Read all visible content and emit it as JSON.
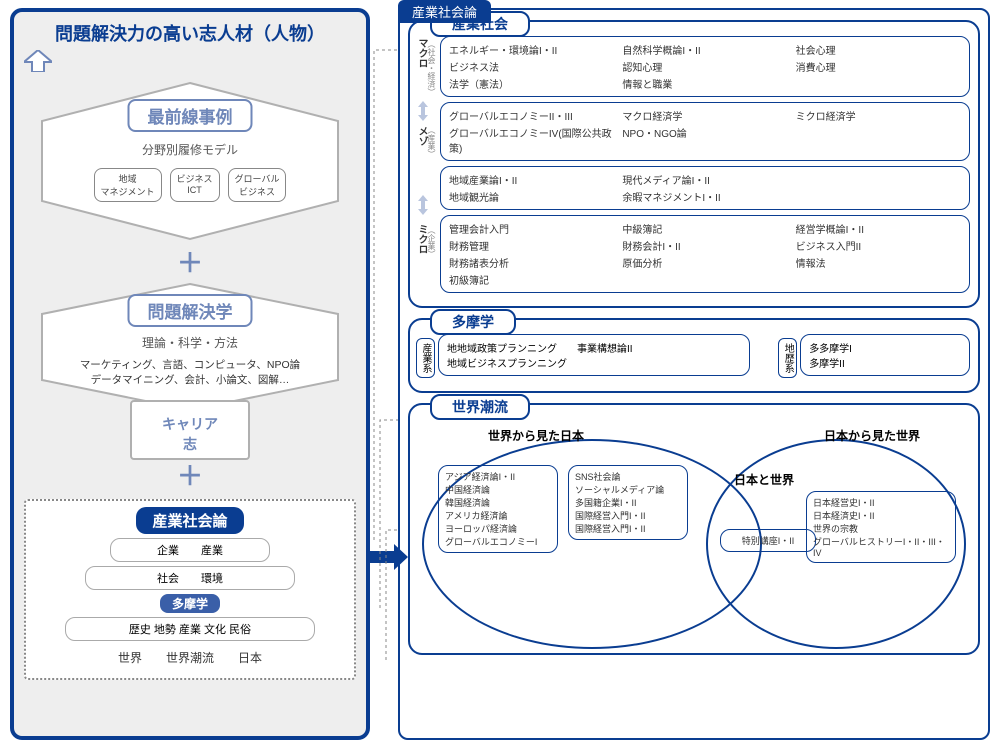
{
  "colors": {
    "primary": "#0a3d91",
    "secondary": "#6f87b9",
    "bg_gray": "#eeeeee",
    "border_gray": "#b0b0b0",
    "text": "#333333"
  },
  "left": {
    "title": "問題解決力の高い志人材（人物）",
    "hex1": {
      "label": "最前線事例",
      "subtitle": "分野別履修モデル",
      "pills": [
        "地域\nマネジメント",
        "ビジネス\nICT",
        "グローバル\nビジネス"
      ]
    },
    "hex2": {
      "label": "問題解決学",
      "subtitle": "理論・科学・方法",
      "body": "マーケティング、言語、コンピュータ、NPO論\nデータマイニング、会計、小論文、図解…"
    },
    "career": "キャリア\n志",
    "bottom": {
      "tab": "産業社会論",
      "tier1": "企業　　産業",
      "tier2": "社会　　環境",
      "tama_tab": "多摩学",
      "tier3": "歴史  地勢  産業  文化  民俗",
      "tier4": "世界　　世界潮流　　日本"
    }
  },
  "right": {
    "top_tab": "産業社会論",
    "s1": {
      "tab": "産業社会",
      "levels": [
        {
          "vlabel": "マクロ",
          "vsub": "（社会・経済）",
          "rows": [
            [
              "エネルギー・環境論I・II",
              "自然科学概論I・II",
              "社会心理"
            ],
            [
              "ビジネス法",
              "認知心理",
              "消費心理"
            ],
            [
              "法学（憲法）",
              "情報と職業",
              ""
            ]
          ]
        },
        {
          "vlabel": "メゾ",
          "vsub": "（産業）",
          "split": true,
          "rows": [
            [
              "グローバルエコノミーII・III",
              "マクロ経済学",
              "ミクロ経済学"
            ],
            [
              "グローバルエコノミーIV(国際公共政策)",
              "NPO・NGO論",
              ""
            ]
          ],
          "rows2": [
            [
              "地域産業論I・II",
              "現代メディア論I・II",
              ""
            ],
            [
              "地域観光論",
              "余暇マネジメントI・II",
              ""
            ]
          ]
        },
        {
          "vlabel": "ミクロ",
          "vsub": "（企業）",
          "rows": [
            [
              "管理会計入門",
              "中級簿記",
              "経営学概論I・II"
            ],
            [
              "財務管理",
              "財務会計I・II",
              "ビジネス入門II"
            ],
            [
              "財務諸表分析",
              "原価分析",
              "情報法"
            ],
            [
              "初級簿記",
              "",
              ""
            ]
          ]
        }
      ]
    },
    "s2": {
      "tab": "多摩学",
      "left_v": "産業系",
      "left": [
        "地地域政策プランニング　　事業構想論II",
        "地域ビジネスプランニング"
      ],
      "right_v": "地歴系",
      "right": [
        "多多摩学I",
        "多摩学II"
      ]
    },
    "s3": {
      "tab": "世界潮流",
      "left_title": "世界から見た日本",
      "center_title": "日本と世界",
      "center_box": "特別講座I・II",
      "right_title": "日本から見た世界",
      "left_box1": [
        "アジア経済論I・II",
        "中国経済論",
        "韓国経済論",
        "アメリカ経済論",
        "ヨーロッパ経済論",
        "グローバルエコノミーI"
      ],
      "left_box2": [
        "SNS社会論",
        "ソーシャルメディア論",
        "多国籍企業I・II",
        "国際経営入門I・II",
        "国際経営入門I・II"
      ],
      "right_box": [
        "日本経営史I・II",
        "日本経済史I・II",
        "世界の宗教",
        "グローバルヒストリーI・II・III・IV"
      ]
    }
  }
}
